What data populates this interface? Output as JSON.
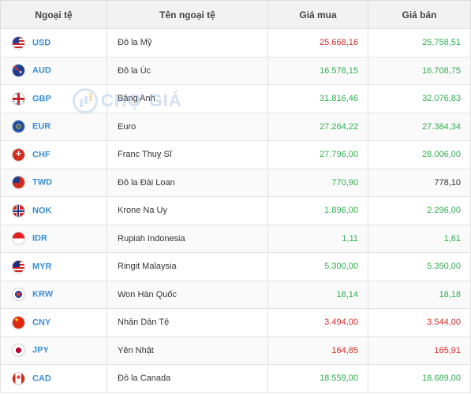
{
  "header": {
    "col_code": "Ngoại tệ",
    "col_name": "Tên ngoại tệ",
    "col_buy": "Giá mua",
    "col_sell": "Giá bán"
  },
  "watermark": {
    "text": "CHỢ GIÁ"
  },
  "colors": {
    "up": "#2eaf4f",
    "down": "#d42b2b",
    "flat": "#333333",
    "code": "#3a8fd6"
  },
  "rows": [
    {
      "code": "USD",
      "name": "Đô la Mỹ",
      "buy": "25.668,16",
      "sell": "25.758,51",
      "flag_icon": "us-flag-icon",
      "buy_trend": "down",
      "sell_trend": "up"
    },
    {
      "code": "AUD",
      "name": "Đô la Úc",
      "buy": "16.578,15",
      "sell": "16.708,75",
      "flag_icon": "au-flag-icon",
      "buy_trend": "up",
      "sell_trend": "up"
    },
    {
      "code": "GBP",
      "name": "Bảng Anh",
      "buy": "31.816,46",
      "sell": "32.076,83",
      "flag_icon": "gb-flag-icon",
      "buy_trend": "up",
      "sell_trend": "up"
    },
    {
      "code": "EUR",
      "name": "Euro",
      "buy": "27.264,22",
      "sell": "27.384,34",
      "flag_icon": "eu-flag-icon",
      "buy_trend": "up",
      "sell_trend": "up"
    },
    {
      "code": "CHF",
      "name": "Franc Thuỵ Sĩ",
      "buy": "27.796,00",
      "sell": "28.006,00",
      "flag_icon": "ch-flag-icon",
      "buy_trend": "up",
      "sell_trend": "up"
    },
    {
      "code": "TWD",
      "name": "Đô la Đài Loan",
      "buy": "770,90",
      "sell": "778,10",
      "flag_icon": "tw-flag-icon",
      "buy_trend": "up",
      "sell_trend": "flat"
    },
    {
      "code": "NOK",
      "name": "Krone Na Uy",
      "buy": "1.896,00",
      "sell": "2.296,00",
      "flag_icon": "no-flag-icon",
      "buy_trend": "up",
      "sell_trend": "up"
    },
    {
      "code": "IDR",
      "name": "Rupiah Indonesia",
      "buy": "1,11",
      "sell": "1,61",
      "flag_icon": "id-flag-icon",
      "buy_trend": "up",
      "sell_trend": "up"
    },
    {
      "code": "MYR",
      "name": "Ringit Malaysia",
      "buy": "5.300,00",
      "sell": "5.350,00",
      "flag_icon": "my-flag-icon",
      "buy_trend": "up",
      "sell_trend": "up"
    },
    {
      "code": "KRW",
      "name": "Won Hàn Quốc",
      "buy": "18,14",
      "sell": "18,18",
      "flag_icon": "kr-flag-icon",
      "buy_trend": "up",
      "sell_trend": "up"
    },
    {
      "code": "CNY",
      "name": "Nhân Dân Tệ",
      "buy": "3.494,00",
      "sell": "3.544,00",
      "flag_icon": "cn-flag-icon",
      "buy_trend": "down",
      "sell_trend": "down"
    },
    {
      "code": "JPY",
      "name": "Yên Nhật",
      "buy": "164,85",
      "sell": "165,91",
      "flag_icon": "jp-flag-icon",
      "buy_trend": "down",
      "sell_trend": "down"
    },
    {
      "code": "CAD",
      "name": "Đô la Canada",
      "buy": "18.559,00",
      "sell": "18.689,00",
      "flag_icon": "ca-flag-icon",
      "buy_trend": "up",
      "sell_trend": "up"
    }
  ]
}
